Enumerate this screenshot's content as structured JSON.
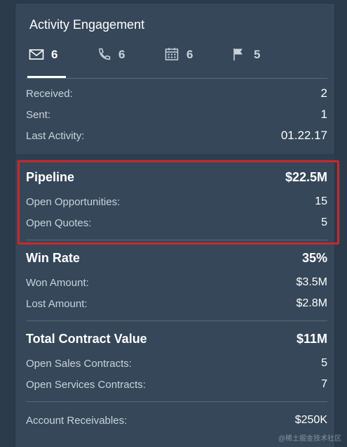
{
  "card": {
    "title": "Activity Engagement"
  },
  "tabs": [
    {
      "icon": "mail-icon",
      "count": "6",
      "active": true
    },
    {
      "icon": "phone-icon",
      "count": "6",
      "active": false
    },
    {
      "icon": "calendar-icon",
      "count": "6",
      "active": false
    },
    {
      "icon": "flag-icon",
      "count": "5",
      "active": false
    }
  ],
  "activity": {
    "received_label": "Received:",
    "received_value": "2",
    "sent_label": "Sent:",
    "sent_value": "1",
    "last_label": "Last Activity:",
    "last_value": "01.22.17"
  },
  "pipeline": {
    "title": "Pipeline",
    "total": "$22.5M",
    "opps_label": "Open Opportunities:",
    "opps_value": "15",
    "quotes_label": "Open Quotes:",
    "quotes_value": "5"
  },
  "win_rate": {
    "title": "Win Rate",
    "value": "35%",
    "won_label": "Won Amount:",
    "won_value": "$3.5M",
    "lost_label": "Lost Amount:",
    "lost_value": "$2.8M"
  },
  "contract": {
    "title": "Total Contract Value",
    "value": "$11M",
    "sales_label": "Open Sales Contracts:",
    "sales_value": "5",
    "services_label": "Open Services Contracts:",
    "services_value": "7"
  },
  "receivables": {
    "label": "Account Receivables:",
    "value": "$250K"
  },
  "watermark": "@稀土掘金技术社区",
  "colors": {
    "card_bg": "#354758",
    "page_bg": "#2b3b4b",
    "highlight": "#c8282c",
    "muted_text": "#c9d3dc"
  }
}
